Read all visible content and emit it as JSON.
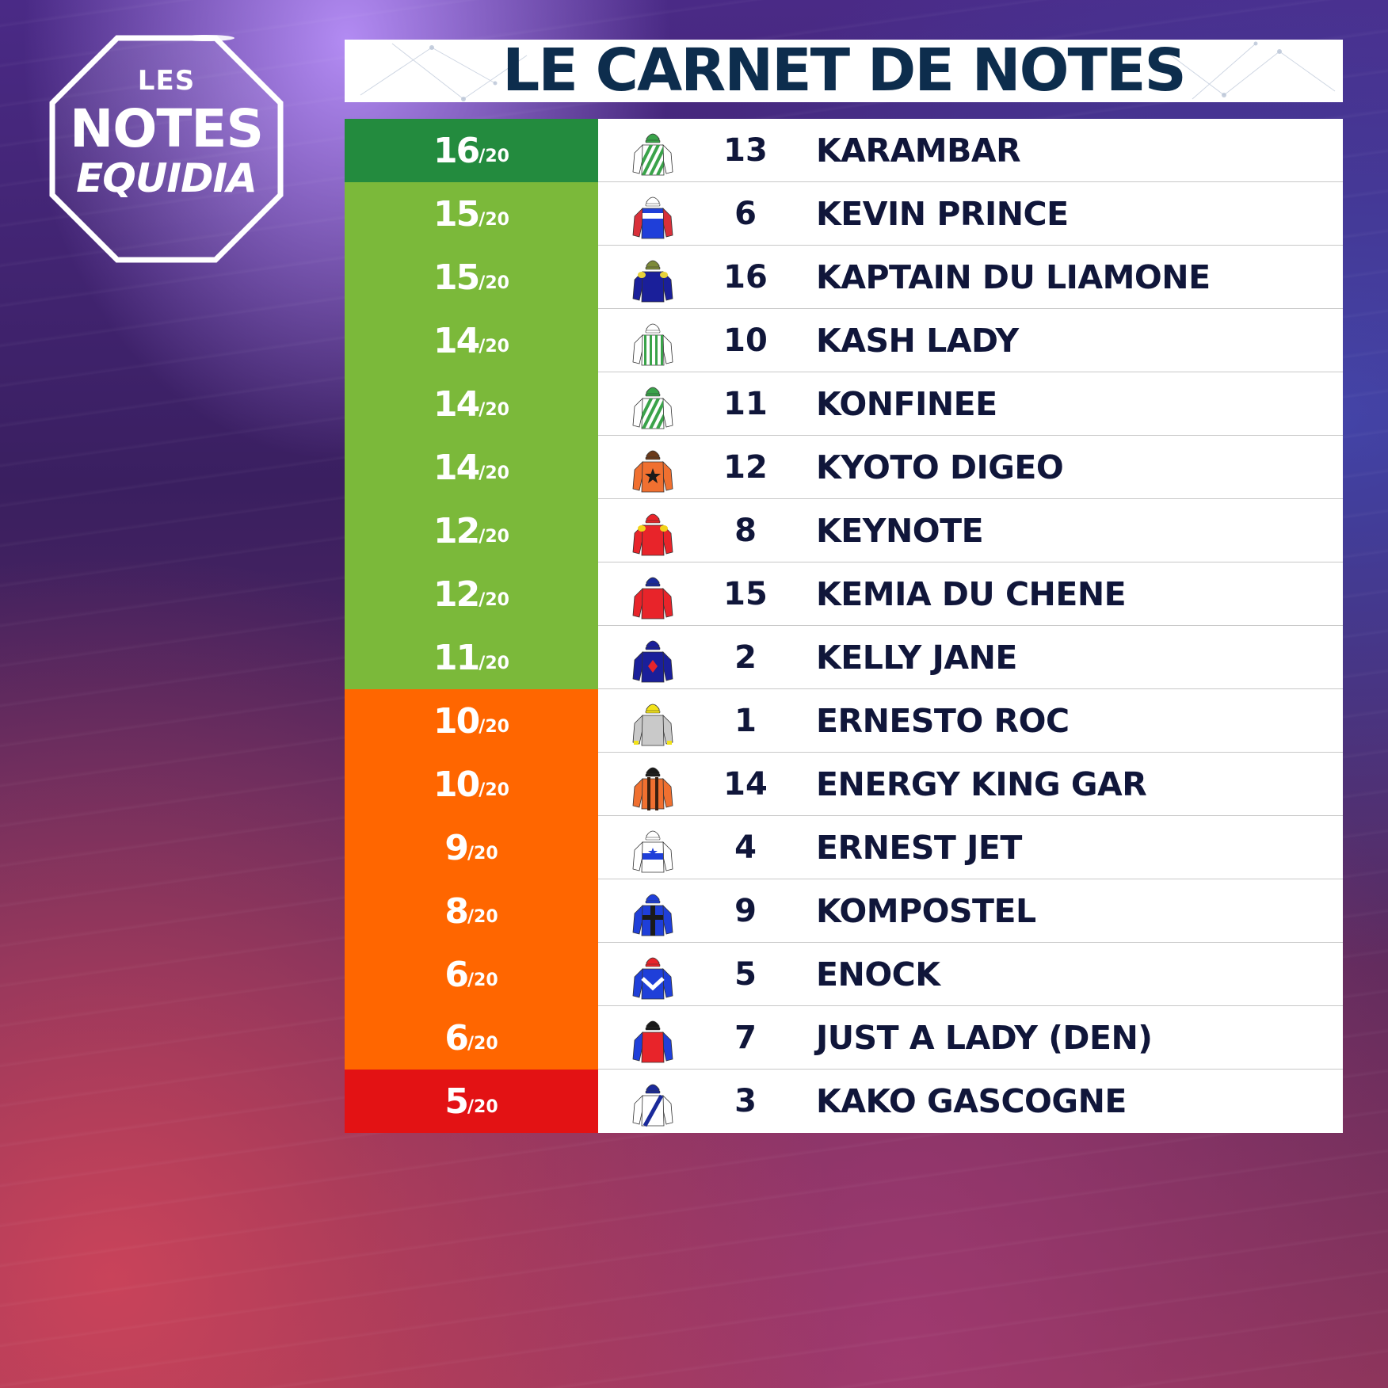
{
  "logo": {
    "line1": "LES",
    "line2": "NOTES",
    "line3": "EQUIDIA"
  },
  "title": "LE CARNET DE NOTES",
  "colors": {
    "dark_green": "#238b3e",
    "light_green": "#7bb93a",
    "orange": "#ff6600",
    "red": "#e31214",
    "title_text": "#0d2d4d",
    "row_text": "#10163a"
  },
  "rows": [
    {
      "score": "16",
      "out_of": "/20",
      "color": "#238b3e",
      "number": "13",
      "name": "KARAMBAR",
      "silk": {
        "icon": "jockey-silk-icon",
        "body": "#ffffff",
        "stripe": "#3aa34a",
        "cap": "#3aa34a",
        "pattern": "diagonal-stripes"
      }
    },
    {
      "score": "15",
      "out_of": "/20",
      "color": "#7bb93a",
      "number": "6",
      "name": "KEVIN PRINCE",
      "silk": {
        "icon": "jockey-silk-icon",
        "body": "#1f3fd9",
        "stripe": "#ffffff",
        "cap": "#ffffff",
        "pattern": "band",
        "sleeve": "#d9303a"
      }
    },
    {
      "score": "15",
      "out_of": "/20",
      "color": "#7bb93a",
      "number": "16",
      "name": "KAPTAIN DU LIAMONE",
      "silk": {
        "icon": "jockey-silk-icon",
        "body": "#1a1f9a",
        "stripe": "#e8d23a",
        "cap": "#7d8a3a",
        "pattern": "epaulettes"
      }
    },
    {
      "score": "14",
      "out_of": "/20",
      "color": "#7bb93a",
      "number": "10",
      "name": "KASH LADY",
      "silk": {
        "icon": "jockey-silk-icon",
        "body": "#ffffff",
        "stripe": "#3aa34a",
        "cap": "#ffffff",
        "pattern": "vertical-stripes"
      }
    },
    {
      "score": "14",
      "out_of": "/20",
      "color": "#7bb93a",
      "number": "11",
      "name": "KONFINEE",
      "silk": {
        "icon": "jockey-silk-icon",
        "body": "#ffffff",
        "stripe": "#3aa34a",
        "cap": "#3aa34a",
        "pattern": "diagonal-stripes"
      }
    },
    {
      "score": "14",
      "out_of": "/20",
      "color": "#7bb93a",
      "number": "12",
      "name": "KYOTO DIGEO",
      "silk": {
        "icon": "jockey-silk-icon",
        "body": "#f07030",
        "stripe": "#1a1a1a",
        "cap": "#6b3a1a",
        "pattern": "star"
      }
    },
    {
      "score": "12",
      "out_of": "/20",
      "color": "#7bb93a",
      "number": "8",
      "name": "KEYNOTE",
      "silk": {
        "icon": "jockey-silk-icon",
        "body": "#e8242a",
        "stripe": "#f2d21a",
        "cap": "#e8242a",
        "pattern": "epaulettes"
      }
    },
    {
      "score": "12",
      "out_of": "/20",
      "color": "#7bb93a",
      "number": "15",
      "name": "KEMIA DU CHENE",
      "silk": {
        "icon": "jockey-silk-icon",
        "body": "#e8242a",
        "stripe": "#e8242a",
        "cap": "#1a2a9a",
        "pattern": "plain"
      }
    },
    {
      "score": "11",
      "out_of": "/20",
      "color": "#7bb93a",
      "number": "2",
      "name": "KELLY JANE",
      "silk": {
        "icon": "jockey-silk-icon",
        "body": "#1a1f9a",
        "stripe": "#e8242a",
        "cap": "#1a1f9a",
        "pattern": "diamond"
      }
    },
    {
      "score": "10",
      "out_of": "/20",
      "color": "#ff6600",
      "number": "1",
      "name": "ERNESTO ROC",
      "silk": {
        "icon": "jockey-silk-icon",
        "body": "#c9c9c9",
        "stripe": "#f2e21a",
        "cap": "#f2e21a",
        "pattern": "cuffs"
      }
    },
    {
      "score": "10",
      "out_of": "/20",
      "color": "#ff6600",
      "number": "14",
      "name": "ENERGY KING GAR",
      "silk": {
        "icon": "jockey-silk-icon",
        "body": "#f07030",
        "stripe": "#3a2010",
        "cap": "#1a1a1a",
        "pattern": "braces"
      }
    },
    {
      "score": "9",
      "out_of": "/20",
      "color": "#ff6600",
      "number": "4",
      "name": "ERNEST JET",
      "silk": {
        "icon": "jockey-silk-icon",
        "body": "#ffffff",
        "stripe": "#1f3fd9",
        "cap": "#ffffff",
        "pattern": "star-band"
      }
    },
    {
      "score": "8",
      "out_of": "/20",
      "color": "#ff6600",
      "number": "9",
      "name": "KOMPOSTEL",
      "silk": {
        "icon": "jockey-silk-icon",
        "body": "#1f3fd9",
        "stripe": "#1a1a1a",
        "cap": "#1f3fd9",
        "pattern": "cross"
      }
    },
    {
      "score": "6",
      "out_of": "/20",
      "color": "#ff6600",
      "number": "5",
      "name": "ENOCK",
      "silk": {
        "icon": "jockey-silk-icon",
        "body": "#1f3fd9",
        "stripe": "#ffffff",
        "cap": "#e8242a",
        "pattern": "chevron"
      }
    },
    {
      "score": "6",
      "out_of": "/20",
      "color": "#ff6600",
      "number": "7",
      "name": "JUST A LADY (DEN)",
      "silk": {
        "icon": "jockey-silk-icon",
        "body": "#e8242a",
        "stripe": "#1f3fd9",
        "cap": "#1a1a1a",
        "pattern": "sleeves"
      }
    },
    {
      "score": "5",
      "out_of": "/20",
      "color": "#e31214",
      "number": "3",
      "name": "KAKO GASCOGNE",
      "silk": {
        "icon": "jockey-silk-icon",
        "body": "#ffffff",
        "stripe": "#1a2a9a",
        "cap": "#1a2a9a",
        "pattern": "sash"
      }
    }
  ]
}
